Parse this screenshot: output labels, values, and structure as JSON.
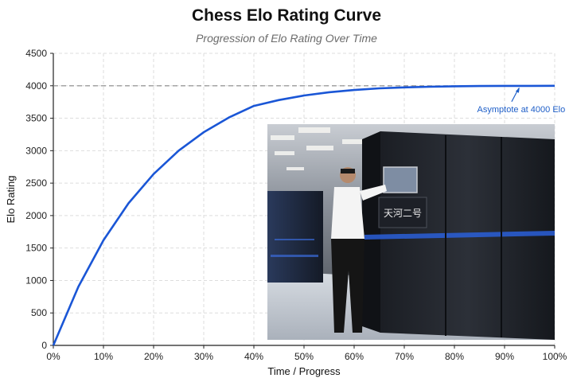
{
  "chart_data": {
    "type": "line",
    "title": "Chess Elo Rating Curve",
    "subtitle": "Progression of Elo Rating Over Time",
    "xlabel": "Time / Progress",
    "ylabel": "Elo Rating",
    "xlim": [
      0,
      100
    ],
    "ylim": [
      0,
      4500
    ],
    "x_ticks": [
      0,
      10,
      20,
      30,
      40,
      50,
      60,
      70,
      80,
      90,
      100
    ],
    "x_tick_labels": [
      "0%",
      "10%",
      "20%",
      "30%",
      "40%",
      "50%",
      "60%",
      "70%",
      "80%",
      "90%",
      "100%"
    ],
    "y_ticks": [
      0,
      500,
      1000,
      1500,
      2000,
      2500,
      3000,
      3500,
      4000,
      4500
    ],
    "y_tick_labels": [
      "0",
      "500",
      "1000",
      "1500",
      "2000",
      "2500",
      "3000",
      "3500",
      "4000",
      "4500"
    ],
    "grid": true,
    "series": [
      {
        "color": "#1a56d6",
        "x": [
          0,
          5,
          10,
          15,
          20,
          25,
          30,
          35,
          40,
          45,
          50,
          55,
          60,
          65,
          70,
          75,
          80,
          85,
          90,
          95,
          100
        ],
        "y": [
          0,
          905,
          1620,
          2190,
          2640,
          3000,
          3285,
          3510,
          3690,
          3780,
          3850,
          3900,
          3935,
          3960,
          3975,
          3985,
          3992,
          3996,
          3998,
          3999,
          4000
        ]
      }
    ],
    "reference_line": {
      "y": 4000,
      "style": "dashed",
      "color": "#888888"
    },
    "annotations": [
      {
        "text": "Asymptote at 4000 Elo",
        "x": 93,
        "y": 4000,
        "color": "#1f5fc8"
      }
    ],
    "inset_image": {
      "description_visible": true,
      "overlay_text": "天河二号"
    }
  },
  "colors": {
    "line": "#1a56d6",
    "grid": "#dddddd",
    "reference": "#888888",
    "annotation": "#1f5fc8"
  }
}
